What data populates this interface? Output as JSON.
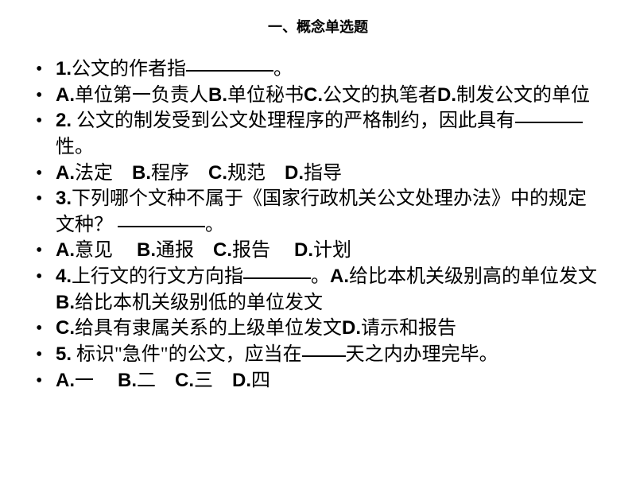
{
  "title": "一、概念单选题",
  "lines": {
    "q1": "公文的作者指",
    "q1_period": "。",
    "q1_opts_a": "单位第一负责人",
    "q1_opts_b": "单位秘书",
    "q1_opts_c": "公文的执笔者",
    "q1_opts_d": "制发公文的单位",
    "q2_a": " 公文的制发受到公文处理程序的严格制约，因此具有",
    "q2_b": "性。",
    "q2_opt_a": "法定",
    "q2_opt_b": "程序",
    "q2_opt_c": "规范",
    "q2_opt_d": "指导",
    "q3_a": "下列哪个文种不属于《国家行政机关公文处理办法》中的规定文种？",
    "q3_b": "。",
    "q3_opt_a": "意见",
    "q3_opt_b": "通报",
    "q3_opt_c": "报告",
    "q3_opt_d": "计划",
    "q4_a": "上行文的行文方向指",
    "q4_b": "。",
    "q4_opt_a": "给比本机关级别高的单位发文",
    "q4_opt_b": "给比本机关级别低的单位发文",
    "q4_opt_c": "给具有隶属关系的上级单位发文",
    "q4_opt_d": "请示和报告",
    "q5_a": " 标识\"急件\"的公文，应当在",
    "q5_b": "天之内办理完毕。",
    "q5_opt_a": "一",
    "q5_opt_b": "二",
    "q5_opt_c": "三",
    "q5_opt_d": "四",
    "labels": {
      "n1": "1.",
      "n2": "2.",
      "n3": "3.",
      "n4": "4.",
      "n5": "5.",
      "A": "A.",
      "B": "B.",
      "C": "C.",
      "D": "D."
    }
  }
}
